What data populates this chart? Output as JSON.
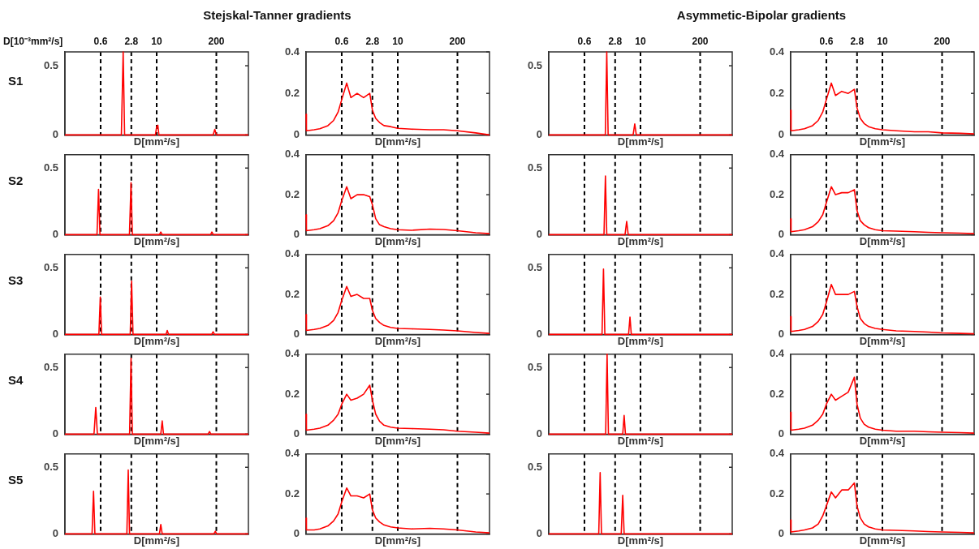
{
  "chart_data": [
    {
      "type": "line",
      "title": "Stejskal-Tanner gradients",
      "ylabel": "S1",
      "xlabel": "D[mm²/s]",
      "annotations": [
        "D[10⁻³mm²/s]"
      ],
      "log": "x",
      "xlim": [
        0.1,
        1000
      ],
      "xticks": [
        0.6,
        2.8,
        10,
        200
      ],
      "ylim": [
        0,
        0.6
      ],
      "yticks": [
        0,
        0.5
      ],
      "x": [
        0.1,
        1.7,
        1.86,
        2.0,
        9.4,
        10,
        10.6,
        11.2,
        170,
        185,
        200,
        1000
      ],
      "series": [
        {
          "color": "#ff0000",
          "values": [
            0,
            0,
            0.6,
            0,
            0,
            0.06,
            0.07,
            0,
            0,
            0.04,
            0,
            0
          ]
        }
      ],
      "ref_lines": [
        {
          "axis": "x",
          "value": 0.6,
          "color": "#000000",
          "line_style": "dashed"
        },
        {
          "axis": "x",
          "value": 2.8,
          "color": "#000000",
          "line_style": "dashed"
        },
        {
          "axis": "x",
          "value": 10,
          "color": "#000000",
          "line_style": "dashed"
        },
        {
          "axis": "x",
          "value": 200,
          "color": "#000000",
          "line_style": "dashed"
        }
      ]
    },
    {
      "type": "line",
      "xlabel": "D[mm²/s]",
      "log": "x",
      "xlim": [
        0.1,
        1000
      ],
      "xticks": [
        0.6,
        2.8,
        10,
        200
      ],
      "ylim": [
        0,
        0.4
      ],
      "yticks": [
        0,
        0.2,
        0.4
      ],
      "x": [
        0.1,
        0.102,
        0.15,
        0.2,
        0.3,
        0.4,
        0.5,
        0.6,
        0.77,
        0.95,
        1.3,
        1.8,
        2.45,
        2.8,
        3.3,
        4,
        5,
        7,
        10,
        20,
        50,
        100,
        200,
        500,
        1000
      ],
      "series": [
        {
          "color": "#ff0000",
          "values": [
            0.1,
            0.02,
            0.025,
            0.03,
            0.045,
            0.07,
            0.11,
            0.17,
            0.25,
            0.18,
            0.2,
            0.18,
            0.2,
            0.12,
            0.08,
            0.06,
            0.045,
            0.04,
            0.032,
            0.028,
            0.025,
            0.025,
            0.02,
            0.01,
            0
          ]
        }
      ],
      "ref_lines": [
        {
          "axis": "x",
          "value": 0.6,
          "color": "#000000",
          "line_style": "dashed"
        },
        {
          "axis": "x",
          "value": 2.8,
          "color": "#000000",
          "line_style": "dashed"
        },
        {
          "axis": "x",
          "value": 10,
          "color": "#000000",
          "line_style": "dashed"
        },
        {
          "axis": "x",
          "value": 200,
          "color": "#000000",
          "line_style": "dashed"
        }
      ]
    },
    {
      "type": "line",
      "title": "Asymmetic-Bipolar gradients",
      "xlabel": "D[mm²/s]",
      "log": "x",
      "xlim": [
        0.1,
        1000
      ],
      "xticks": [
        0.6,
        2.8,
        10,
        200
      ],
      "ylim": [
        0,
        0.6
      ],
      "yticks": [
        0,
        0.5
      ],
      "x": [
        0.1,
        1.71,
        1.84,
        1.97,
        6.9,
        7.5,
        8.1,
        1000
      ],
      "series": [
        {
          "color": "#ff0000",
          "values": [
            0,
            0,
            0.6,
            0,
            0,
            0.08,
            0,
            0
          ]
        }
      ],
      "ref_lines": [
        {
          "axis": "x",
          "value": 0.6,
          "color": "#000000",
          "line_style": "dashed"
        },
        {
          "axis": "x",
          "value": 2.8,
          "color": "#000000",
          "line_style": "dashed"
        },
        {
          "axis": "x",
          "value": 10,
          "color": "#000000",
          "line_style": "dashed"
        },
        {
          "axis": "x",
          "value": 200,
          "color": "#000000",
          "line_style": "dashed"
        }
      ]
    },
    {
      "type": "line",
      "xlabel": "D[mm²/s]",
      "log": "x",
      "xlim": [
        0.1,
        1000
      ],
      "xticks": [
        0.6,
        2.8,
        10,
        200
      ],
      "ylim": [
        0,
        0.4
      ],
      "yticks": [
        0,
        0.2,
        0.4
      ],
      "x": [
        0.1,
        0.102,
        0.15,
        0.2,
        0.3,
        0.4,
        0.5,
        0.6,
        0.77,
        0.95,
        1.3,
        1.8,
        2.45,
        2.8,
        3.3,
        4,
        5,
        7,
        10,
        20,
        50,
        100,
        200,
        500,
        1000
      ],
      "series": [
        {
          "color": "#ff0000",
          "values": [
            0.12,
            0.02,
            0.025,
            0.03,
            0.045,
            0.07,
            0.11,
            0.17,
            0.25,
            0.19,
            0.21,
            0.2,
            0.22,
            0.13,
            0.08,
            0.055,
            0.04,
            0.03,
            0.025,
            0.02,
            0.015,
            0.015,
            0.01,
            0.008,
            0.005
          ]
        }
      ],
      "ref_lines": [
        {
          "axis": "x",
          "value": 0.6,
          "color": "#000000",
          "line_style": "dashed"
        },
        {
          "axis": "x",
          "value": 2.8,
          "color": "#000000",
          "line_style": "dashed"
        },
        {
          "axis": "x",
          "value": 10,
          "color": "#000000",
          "line_style": "dashed"
        },
        {
          "axis": "x",
          "value": 200,
          "color": "#000000",
          "line_style": "dashed"
        }
      ]
    },
    {
      "type": "line",
      "ylabel": "S2",
      "xlabel": "D[mm²/s]",
      "log": "x",
      "tick_labels": "y",
      "xlim": [
        0.1,
        1000
      ],
      "xticks": [
        0.6,
        2.8,
        10,
        200
      ],
      "ylim": [
        0,
        0.6
      ],
      "yticks": [
        0,
        0.5
      ],
      "x": [
        0.1,
        0.5,
        0.54,
        0.58,
        2.55,
        2.76,
        2.95,
        11.5,
        12.3,
        13.2,
        150,
        160,
        172,
        1000
      ],
      "series": [
        {
          "color": "#ff0000",
          "values": [
            0,
            0,
            0.34,
            0,
            0,
            0.39,
            0,
            0,
            0.02,
            0,
            0,
            0.02,
            0,
            0
          ]
        }
      ],
      "ref_lines": [
        {
          "axis": "x",
          "value": 0.6,
          "color": "#000000",
          "line_style": "dashed"
        },
        {
          "axis": "x",
          "value": 2.8,
          "color": "#000000",
          "line_style": "dashed"
        },
        {
          "axis": "x",
          "value": 10,
          "color": "#000000",
          "line_style": "dashed"
        },
        {
          "axis": "x",
          "value": 200,
          "color": "#000000",
          "line_style": "dashed"
        }
      ]
    },
    {
      "type": "line",
      "xlabel": "D[mm²/s]",
      "log": "x",
      "tick_labels": "y",
      "xlim": [
        0.1,
        1000
      ],
      "xticks": [
        0.6,
        2.8,
        10,
        200
      ],
      "ylim": [
        0,
        0.4
      ],
      "yticks": [
        0,
        0.2,
        0.4
      ],
      "x": [
        0.1,
        0.102,
        0.15,
        0.2,
        0.3,
        0.4,
        0.5,
        0.6,
        0.77,
        0.95,
        1.3,
        1.8,
        2.45,
        2.8,
        3.3,
        4,
        5,
        7,
        10,
        20,
        50,
        100,
        200,
        500,
        1000
      ],
      "series": [
        {
          "color": "#ff0000",
          "values": [
            0.1,
            0.02,
            0.025,
            0.03,
            0.045,
            0.07,
            0.11,
            0.17,
            0.24,
            0.18,
            0.2,
            0.2,
            0.19,
            0.15,
            0.08,
            0.05,
            0.04,
            0.03,
            0.025,
            0.022,
            0.028,
            0.026,
            0.02,
            0.01,
            0.005
          ]
        }
      ],
      "ref_lines": [
        {
          "axis": "x",
          "value": 0.6,
          "color": "#000000",
          "line_style": "dashed"
        },
        {
          "axis": "x",
          "value": 2.8,
          "color": "#000000",
          "line_style": "dashed"
        },
        {
          "axis": "x",
          "value": 10,
          "color": "#000000",
          "line_style": "dashed"
        },
        {
          "axis": "x",
          "value": 200,
          "color": "#000000",
          "line_style": "dashed"
        }
      ]
    },
    {
      "type": "line",
      "xlabel": "D[mm²/s]",
      "log": "x",
      "tick_labels": "y",
      "xlim": [
        0.1,
        1000
      ],
      "xticks": [
        0.6,
        2.8,
        10,
        200
      ],
      "ylim": [
        0,
        0.6
      ],
      "yticks": [
        0,
        0.5
      ],
      "x": [
        0.1,
        1.6,
        1.72,
        1.84,
        4.6,
        5.0,
        5.4,
        1000
      ],
      "series": [
        {
          "color": "#ff0000",
          "values": [
            0,
            0,
            0.44,
            0,
            0,
            0.1,
            0,
            0
          ]
        }
      ],
      "ref_lines": [
        {
          "axis": "x",
          "value": 0.6,
          "color": "#000000",
          "line_style": "dashed"
        },
        {
          "axis": "x",
          "value": 2.8,
          "color": "#000000",
          "line_style": "dashed"
        },
        {
          "axis": "x",
          "value": 10,
          "color": "#000000",
          "line_style": "dashed"
        },
        {
          "axis": "x",
          "value": 200,
          "color": "#000000",
          "line_style": "dashed"
        }
      ]
    },
    {
      "type": "line",
      "xlabel": "D[mm²/s]",
      "log": "x",
      "tick_labels": "y",
      "xlim": [
        0.1,
        1000
      ],
      "xticks": [
        0.6,
        2.8,
        10,
        200
      ],
      "ylim": [
        0,
        0.4
      ],
      "yticks": [
        0,
        0.2,
        0.4
      ],
      "x": [
        0.1,
        0.102,
        0.15,
        0.2,
        0.3,
        0.4,
        0.5,
        0.6,
        0.77,
        0.95,
        1.3,
        1.8,
        2.45,
        2.8,
        3.3,
        4,
        5,
        7,
        10,
        20,
        50,
        100,
        200,
        500,
        1000
      ],
      "series": [
        {
          "color": "#ff0000",
          "values": [
            0.08,
            0.015,
            0.02,
            0.025,
            0.04,
            0.065,
            0.1,
            0.16,
            0.24,
            0.2,
            0.21,
            0.21,
            0.225,
            0.12,
            0.07,
            0.05,
            0.035,
            0.025,
            0.02,
            0.018,
            0.015,
            0.012,
            0.01,
            0.008,
            0.005
          ]
        }
      ],
      "ref_lines": [
        {
          "axis": "x",
          "value": 0.6,
          "color": "#000000",
          "line_style": "dashed"
        },
        {
          "axis": "x",
          "value": 2.8,
          "color": "#000000",
          "line_style": "dashed"
        },
        {
          "axis": "x",
          "value": 10,
          "color": "#000000",
          "line_style": "dashed"
        },
        {
          "axis": "x",
          "value": 200,
          "color": "#000000",
          "line_style": "dashed"
        }
      ]
    },
    {
      "type": "line",
      "ylabel": "S3",
      "xlabel": "D[mm²/s]",
      "log": "x",
      "tick_labels": "y",
      "xlim": [
        0.1,
        1000
      ],
      "xticks": [
        0.6,
        2.8,
        10,
        200
      ],
      "ylim": [
        0,
        0.6
      ],
      "yticks": [
        0,
        0.5
      ],
      "x": [
        0.1,
        0.55,
        0.59,
        0.63,
        2.65,
        2.84,
        3.05,
        16,
        17,
        18.2,
        158,
        170,
        182,
        1000
      ],
      "series": [
        {
          "color": "#ff0000",
          "values": [
            0,
            0,
            0.28,
            0,
            0,
            0.4,
            0,
            0,
            0.03,
            0,
            0,
            0.02,
            0,
            0
          ]
        }
      ],
      "ref_lines": [
        {
          "axis": "x",
          "value": 0.6,
          "color": "#000000",
          "line_style": "dashed"
        },
        {
          "axis": "x",
          "value": 2.8,
          "color": "#000000",
          "line_style": "dashed"
        },
        {
          "axis": "x",
          "value": 10,
          "color": "#000000",
          "line_style": "dashed"
        },
        {
          "axis": "x",
          "value": 200,
          "color": "#000000",
          "line_style": "dashed"
        }
      ]
    },
    {
      "type": "line",
      "xlabel": "D[mm²/s]",
      "log": "x",
      "tick_labels": "y",
      "xlim": [
        0.1,
        1000
      ],
      "xticks": [
        0.6,
        2.8,
        10,
        200
      ],
      "ylim": [
        0,
        0.4
      ],
      "yticks": [
        0,
        0.2,
        0.4
      ],
      "x": [
        0.1,
        0.102,
        0.15,
        0.2,
        0.3,
        0.4,
        0.5,
        0.6,
        0.77,
        0.95,
        1.3,
        1.8,
        2.45,
        2.8,
        3.3,
        4,
        5,
        7,
        10,
        20,
        50,
        100,
        200,
        500,
        1000
      ],
      "series": [
        {
          "color": "#ff0000",
          "values": [
            0.1,
            0.02,
            0.025,
            0.03,
            0.045,
            0.07,
            0.11,
            0.17,
            0.24,
            0.19,
            0.2,
            0.18,
            0.18,
            0.12,
            0.08,
            0.06,
            0.045,
            0.035,
            0.03,
            0.028,
            0.025,
            0.022,
            0.018,
            0.01,
            0.005
          ]
        }
      ],
      "ref_lines": [
        {
          "axis": "x",
          "value": 0.6,
          "color": "#000000",
          "line_style": "dashed"
        },
        {
          "axis": "x",
          "value": 2.8,
          "color": "#000000",
          "line_style": "dashed"
        },
        {
          "axis": "x",
          "value": 10,
          "color": "#000000",
          "line_style": "dashed"
        },
        {
          "axis": "x",
          "value": 200,
          "color": "#000000",
          "line_style": "dashed"
        }
      ]
    },
    {
      "type": "line",
      "xlabel": "D[mm²/s]",
      "log": "x",
      "tick_labels": "y",
      "xlim": [
        0.1,
        1000
      ],
      "xticks": [
        0.6,
        2.8,
        10,
        200
      ],
      "ylim": [
        0,
        0.6
      ],
      "yticks": [
        0,
        0.5
      ],
      "x": [
        0.1,
        1.45,
        1.56,
        1.67,
        5.5,
        5.9,
        6.3,
        1000
      ],
      "series": [
        {
          "color": "#ff0000",
          "values": [
            0,
            0,
            0.49,
            0,
            0,
            0.13,
            0,
            0
          ]
        }
      ],
      "ref_lines": [
        {
          "axis": "x",
          "value": 0.6,
          "color": "#000000",
          "line_style": "dashed"
        },
        {
          "axis": "x",
          "value": 2.8,
          "color": "#000000",
          "line_style": "dashed"
        },
        {
          "axis": "x",
          "value": 10,
          "color": "#000000",
          "line_style": "dashed"
        },
        {
          "axis": "x",
          "value": 200,
          "color": "#000000",
          "line_style": "dashed"
        }
      ]
    },
    {
      "type": "line",
      "xlabel": "D[mm²/s]",
      "log": "x",
      "tick_labels": "y",
      "xlim": [
        0.1,
        1000
      ],
      "xticks": [
        0.6,
        2.8,
        10,
        200
      ],
      "ylim": [
        0,
        0.4
      ],
      "yticks": [
        0,
        0.2,
        0.4
      ],
      "x": [
        0.1,
        0.102,
        0.15,
        0.2,
        0.3,
        0.4,
        0.5,
        0.6,
        0.77,
        0.95,
        1.3,
        1.8,
        2.45,
        2.8,
        3.3,
        4,
        5,
        7,
        10,
        20,
        50,
        100,
        200,
        500,
        1000
      ],
      "series": [
        {
          "color": "#ff0000",
          "values": [
            0.09,
            0.015,
            0.02,
            0.025,
            0.04,
            0.065,
            0.1,
            0.16,
            0.25,
            0.2,
            0.2,
            0.2,
            0.215,
            0.14,
            0.08,
            0.055,
            0.04,
            0.03,
            0.025,
            0.018,
            0.015,
            0.012,
            0.008,
            0.005,
            0.003
          ]
        }
      ],
      "ref_lines": [
        {
          "axis": "x",
          "value": 0.6,
          "color": "#000000",
          "line_style": "dashed"
        },
        {
          "axis": "x",
          "value": 2.8,
          "color": "#000000",
          "line_style": "dashed"
        },
        {
          "axis": "x",
          "value": 10,
          "color": "#000000",
          "line_style": "dashed"
        },
        {
          "axis": "x",
          "value": 200,
          "color": "#000000",
          "line_style": "dashed"
        }
      ]
    },
    {
      "type": "line",
      "ylabel": "S4",
      "xlabel": "D[mm²/s]",
      "log": "x",
      "tick_labels": "y",
      "xlim": [
        0.1,
        1000
      ],
      "xticks": [
        0.6,
        2.8,
        10,
        200
      ],
      "ylim": [
        0,
        0.6
      ],
      "yticks": [
        0,
        0.5
      ],
      "x": [
        0.1,
        0.43,
        0.47,
        0.51,
        2.57,
        2.76,
        2.95,
        12.3,
        13.2,
        14.1,
        132,
        142,
        152,
        1000
      ],
      "series": [
        {
          "color": "#ff0000",
          "values": [
            0,
            0,
            0.2,
            0,
            0,
            0.57,
            0,
            0,
            0.1,
            0,
            0,
            0.02,
            0,
            0
          ]
        }
      ],
      "ref_lines": [
        {
          "axis": "x",
          "value": 0.6,
          "color": "#000000",
          "line_style": "dashed"
        },
        {
          "axis": "x",
          "value": 2.8,
          "color": "#000000",
          "line_style": "dashed"
        },
        {
          "axis": "x",
          "value": 10,
          "color": "#000000",
          "line_style": "dashed"
        },
        {
          "axis": "x",
          "value": 200,
          "color": "#000000",
          "line_style": "dashed"
        }
      ]
    },
    {
      "type": "line",
      "xlabel": "D[mm²/s]",
      "log": "x",
      "tick_labels": "y",
      "xlim": [
        0.1,
        1000
      ],
      "xticks": [
        0.6,
        2.8,
        10,
        200
      ],
      "ylim": [
        0,
        0.4
      ],
      "yticks": [
        0,
        0.2,
        0.4
      ],
      "x": [
        0.1,
        0.102,
        0.15,
        0.2,
        0.3,
        0.4,
        0.5,
        0.6,
        0.77,
        0.95,
        1.3,
        1.8,
        2.45,
        2.8,
        3.3,
        4,
        5,
        7,
        10,
        20,
        50,
        100,
        200,
        500,
        1000
      ],
      "series": [
        {
          "color": "#ff0000",
          "values": [
            0.1,
            0.02,
            0.025,
            0.03,
            0.045,
            0.07,
            0.1,
            0.15,
            0.2,
            0.17,
            0.18,
            0.2,
            0.245,
            0.17,
            0.1,
            0.065,
            0.045,
            0.035,
            0.03,
            0.028,
            0.025,
            0.022,
            0.015,
            0.01,
            0.005
          ]
        }
      ],
      "ref_lines": [
        {
          "axis": "x",
          "value": 0.6,
          "color": "#000000",
          "line_style": "dashed"
        },
        {
          "axis": "x",
          "value": 2.8,
          "color": "#000000",
          "line_style": "dashed"
        },
        {
          "axis": "x",
          "value": 10,
          "color": "#000000",
          "line_style": "dashed"
        },
        {
          "axis": "x",
          "value": 200,
          "color": "#000000",
          "line_style": "dashed"
        }
      ]
    },
    {
      "type": "line",
      "xlabel": "D[mm²/s]",
      "log": "x",
      "tick_labels": "y",
      "xlim": [
        0.1,
        1000
      ],
      "xticks": [
        0.6,
        2.8,
        10,
        200
      ],
      "ylim": [
        0,
        0.6
      ],
      "yticks": [
        0,
        0.5
      ],
      "x": [
        0.1,
        1.74,
        1.87,
        2.0,
        4.1,
        4.4,
        4.7,
        1000
      ],
      "series": [
        {
          "color": "#ff0000",
          "values": [
            0,
            0,
            0.6,
            0,
            0,
            0.14,
            0,
            0
          ]
        }
      ],
      "ref_lines": [
        {
          "axis": "x",
          "value": 0.6,
          "color": "#000000",
          "line_style": "dashed"
        },
        {
          "axis": "x",
          "value": 2.8,
          "color": "#000000",
          "line_style": "dashed"
        },
        {
          "axis": "x",
          "value": 10,
          "color": "#000000",
          "line_style": "dashed"
        },
        {
          "axis": "x",
          "value": 200,
          "color": "#000000",
          "line_style": "dashed"
        }
      ]
    },
    {
      "type": "line",
      "xlabel": "D[mm²/s]",
      "log": "x",
      "tick_labels": "y",
      "xlim": [
        0.1,
        1000
      ],
      "xticks": [
        0.6,
        2.8,
        10,
        200
      ],
      "ylim": [
        0,
        0.4
      ],
      "yticks": [
        0,
        0.2,
        0.4
      ],
      "x": [
        0.1,
        0.102,
        0.15,
        0.2,
        0.3,
        0.4,
        0.5,
        0.6,
        0.77,
        0.95,
        1.3,
        1.8,
        2.45,
        2.8,
        3.3,
        4,
        5,
        7,
        10,
        20,
        50,
        100,
        200,
        500,
        1000
      ],
      "series": [
        {
          "color": "#ff0000",
          "values": [
            0.11,
            0.02,
            0.025,
            0.03,
            0.045,
            0.07,
            0.1,
            0.15,
            0.2,
            0.17,
            0.19,
            0.21,
            0.285,
            0.15,
            0.08,
            0.05,
            0.035,
            0.025,
            0.02,
            0.015,
            0.015,
            0.012,
            0.01,
            0.008,
            0.005
          ]
        }
      ],
      "ref_lines": [
        {
          "axis": "x",
          "value": 0.6,
          "color": "#000000",
          "line_style": "dashed"
        },
        {
          "axis": "x",
          "value": 2.8,
          "color": "#000000",
          "line_style": "dashed"
        },
        {
          "axis": "x",
          "value": 10,
          "color": "#000000",
          "line_style": "dashed"
        },
        {
          "axis": "x",
          "value": 200,
          "color": "#000000",
          "line_style": "dashed"
        }
      ]
    },
    {
      "type": "line",
      "ylabel": "S5",
      "xlabel": "D[mm²/s]",
      "log": "x",
      "tick_labels": "y",
      "xlim": [
        0.1,
        1000
      ],
      "xticks": [
        0.6,
        2.8,
        10,
        200
      ],
      "ylim": [
        0,
        0.6
      ],
      "yticks": [
        0,
        0.5
      ],
      "x": [
        0.1,
        0.39,
        0.42,
        0.45,
        2.24,
        2.4,
        2.56,
        11.5,
        12.3,
        13.2,
        177,
        190,
        203,
        1000
      ],
      "series": [
        {
          "color": "#ff0000",
          "values": [
            0,
            0,
            0.32,
            0,
            0,
            0.48,
            0,
            0,
            0.07,
            0,
            0,
            0.02,
            0,
            0
          ]
        }
      ],
      "ref_lines": [
        {
          "axis": "x",
          "value": 0.6,
          "color": "#000000",
          "line_style": "dashed"
        },
        {
          "axis": "x",
          "value": 2.8,
          "color": "#000000",
          "line_style": "dashed"
        },
        {
          "axis": "x",
          "value": 10,
          "color": "#000000",
          "line_style": "dashed"
        },
        {
          "axis": "x",
          "value": 200,
          "color": "#000000",
          "line_style": "dashed"
        }
      ]
    },
    {
      "type": "line",
      "xlabel": "D[mm²/s]",
      "log": "x",
      "tick_labels": "y",
      "xlim": [
        0.1,
        1000
      ],
      "xticks": [
        0.6,
        2.8,
        10,
        200
      ],
      "ylim": [
        0,
        0.4
      ],
      "yticks": [
        0,
        0.2,
        0.4
      ],
      "x": [
        0.1,
        0.102,
        0.15,
        0.2,
        0.3,
        0.4,
        0.5,
        0.6,
        0.77,
        0.95,
        1.3,
        1.8,
        2.45,
        2.8,
        3.3,
        4,
        5,
        7,
        10,
        20,
        50,
        100,
        200,
        500,
        1000
      ],
      "series": [
        {
          "color": "#ff0000",
          "values": [
            0.08,
            0.02,
            0.02,
            0.025,
            0.04,
            0.065,
            0.1,
            0.16,
            0.23,
            0.19,
            0.19,
            0.18,
            0.2,
            0.12,
            0.08,
            0.06,
            0.045,
            0.035,
            0.03,
            0.025,
            0.028,
            0.025,
            0.02,
            0.01,
            0.005
          ]
        }
      ],
      "ref_lines": [
        {
          "axis": "x",
          "value": 0.6,
          "color": "#000000",
          "line_style": "dashed"
        },
        {
          "axis": "x",
          "value": 2.8,
          "color": "#000000",
          "line_style": "dashed"
        },
        {
          "axis": "x",
          "value": 10,
          "color": "#000000",
          "line_style": "dashed"
        },
        {
          "axis": "x",
          "value": 200,
          "color": "#000000",
          "line_style": "dashed"
        }
      ]
    },
    {
      "type": "line",
      "xlabel": "D[mm²/s]",
      "log": "x",
      "tick_labels": "y",
      "xlim": [
        0.1,
        1000
      ],
      "xticks": [
        0.6,
        2.8,
        10,
        200
      ],
      "ylim": [
        0,
        0.6
      ],
      "yticks": [
        0,
        0.5
      ],
      "x": [
        0.1,
        1.23,
        1.32,
        1.41,
        3.8,
        4.1,
        4.4,
        1000
      ],
      "series": [
        {
          "color": "#ff0000",
          "values": [
            0,
            0,
            0.46,
            0,
            0,
            0.29,
            0,
            0
          ]
        }
      ],
      "ref_lines": [
        {
          "axis": "x",
          "value": 0.6,
          "color": "#000000",
          "line_style": "dashed"
        },
        {
          "axis": "x",
          "value": 2.8,
          "color": "#000000",
          "line_style": "dashed"
        },
        {
          "axis": "x",
          "value": 10,
          "color": "#000000",
          "line_style": "dashed"
        },
        {
          "axis": "x",
          "value": 200,
          "color": "#000000",
          "line_style": "dashed"
        }
      ]
    },
    {
      "type": "line",
      "xlabel": "D[mm²/s]",
      "log": "x",
      "tick_labels": "y",
      "xlim": [
        0.1,
        1000
      ],
      "xticks": [
        0.6,
        2.8,
        10,
        200
      ],
      "ylim": [
        0,
        0.4
      ],
      "yticks": [
        0,
        0.2,
        0.4
      ],
      "x": [
        0.1,
        0.102,
        0.15,
        0.2,
        0.3,
        0.4,
        0.5,
        0.6,
        0.77,
        0.95,
        1.3,
        1.8,
        2.45,
        2.8,
        3.3,
        4,
        5,
        7,
        10,
        20,
        50,
        100,
        200,
        500,
        1000
      ],
      "series": [
        {
          "color": "#ff0000",
          "values": [
            0.07,
            0.01,
            0.015,
            0.02,
            0.03,
            0.05,
            0.09,
            0.14,
            0.21,
            0.18,
            0.22,
            0.22,
            0.255,
            0.14,
            0.08,
            0.05,
            0.035,
            0.025,
            0.02,
            0.018,
            0.015,
            0.012,
            0.01,
            0.008,
            0.005
          ]
        }
      ],
      "ref_lines": [
        {
          "axis": "x",
          "value": 0.6,
          "color": "#000000",
          "line_style": "dashed"
        },
        {
          "axis": "x",
          "value": 2.8,
          "color": "#000000",
          "line_style": "dashed"
        },
        {
          "axis": "x",
          "value": 10,
          "color": "#000000",
          "line_style": "dashed"
        },
        {
          "axis": "x",
          "value": 200,
          "color": "#000000",
          "line_style": "dashed"
        }
      ]
    }
  ]
}
